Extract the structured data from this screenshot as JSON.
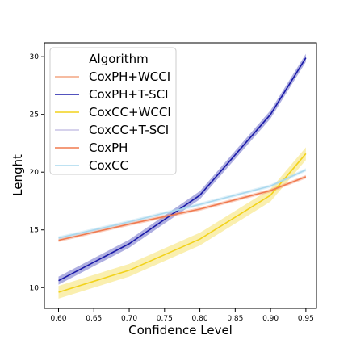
{
  "chart_data": {
    "type": "line",
    "xlabel": "Confidence Level",
    "ylabel": "Lenght",
    "xlim": [
      0.58,
      0.965
    ],
    "ylim": [
      8.2,
      31.2
    ],
    "xticks": [
      "0.60",
      "0.65",
      "0.70",
      "0.75",
      "0.80",
      "0.85",
      "0.90",
      "0.95"
    ],
    "yticks": [
      "10",
      "15",
      "20",
      "25",
      "30"
    ],
    "x": [
      0.6,
      0.7,
      0.8,
      0.9,
      0.95
    ],
    "grid": false,
    "legend": {
      "title": "Algorithm",
      "placement": "upper-left"
    },
    "series": [
      {
        "name": "CoxPH+WCCI",
        "color": "#f4a582",
        "values": [
          10.4,
          13.5,
          17.7,
          24.7,
          29.5
        ],
        "band": 0.0,
        "draw": false
      },
      {
        "name": "CoxPH+T-SCI",
        "color": "#1a1aa8",
        "values": [
          10.6,
          13.8,
          18.0,
          25.0,
          29.9
        ],
        "band": 0.35
      },
      {
        "name": "CoxCC+WCCI",
        "color": "#f2d21b",
        "values": [
          9.6,
          11.5,
          14.2,
          18.0,
          21.6
        ],
        "band": 0.55
      },
      {
        "name": "CoxCC+T-SCI",
        "color": "#c9c3e6",
        "values": [
          10.6,
          13.8,
          18.0,
          25.0,
          29.9
        ],
        "band": 0.3,
        "draw": false
      },
      {
        "name": "CoxPH",
        "color": "#f07a4f",
        "values": [
          14.1,
          15.5,
          16.8,
          18.4,
          19.6
        ],
        "band": 0.15
      },
      {
        "name": "CoxCC",
        "color": "#a9d8ee",
        "values": [
          14.3,
          15.7,
          17.2,
          18.8,
          20.2
        ],
        "band": 0.15
      }
    ]
  }
}
